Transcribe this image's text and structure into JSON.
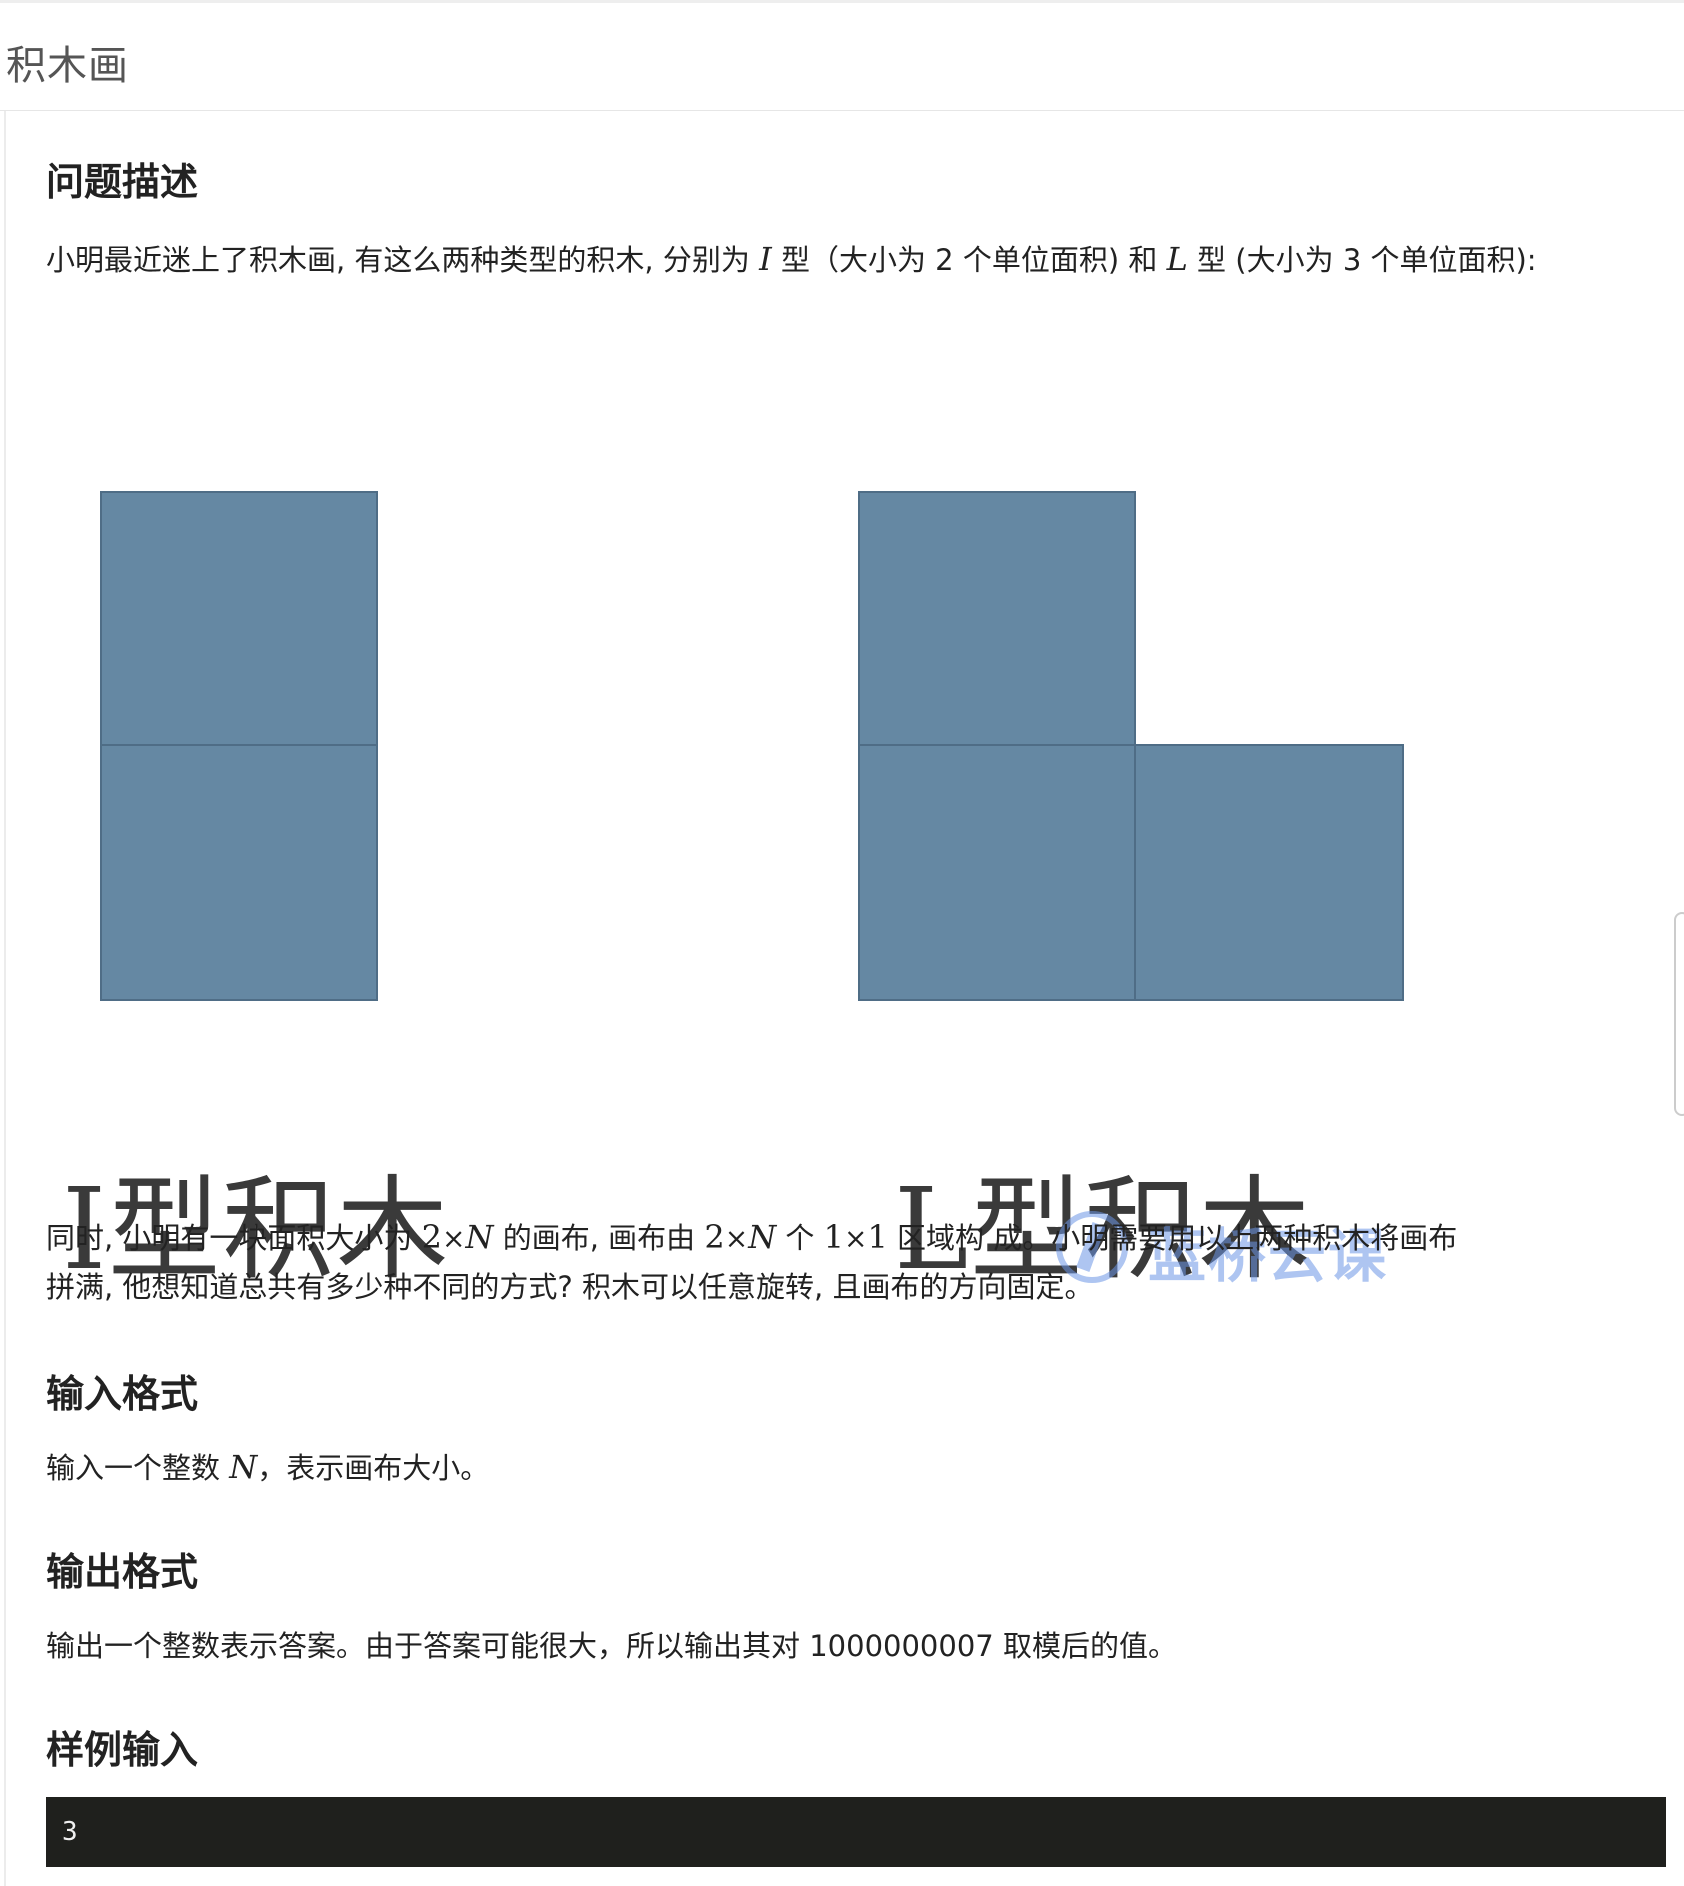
{
  "page": {
    "title": "积木画"
  },
  "sections": {
    "problem": {
      "heading": "问题描述",
      "intro": {
        "a": "小明最近迷上了积木画, 有这么两种类型的积木, 分别为 ",
        "i_sym": "I",
        "b": " 型（大小为 2 个单位面积) 和 ",
        "l_sym": "L",
        "c": " 型 (大小为 3 个单位面积):"
      },
      "body": {
        "a": "同时, 小明有一块面积大小为 ",
        "n1": "2",
        "x1": "×",
        "v1": "N",
        "b": " 的画布, 画布由 ",
        "n2": "2",
        "x2": "×",
        "v2": "N",
        "c": " 个 ",
        "n3": "1",
        "x3": "×",
        "n4": "1",
        "d": " 区域构 成。小明需要用以上两种积木将画布",
        "line2": "拼满, 他想知道总共有多少种不同的方式? 积木可以任意旋转, 且画布的方向固定。"
      }
    },
    "input": {
      "heading": "输入格式",
      "a": "输入一个整数 ",
      "v": "N",
      "b": "，表示画布大小。"
    },
    "output": {
      "heading": "输出格式",
      "text": "输出一个整数表示答案。由于答案可能很大，所以输出其对 1000000007 取模后的值。"
    },
    "sample_input": {
      "heading": "样例输入",
      "code": "3"
    }
  },
  "figure": {
    "caption_i": "I型积木",
    "caption_l": "L型积木",
    "block_color": "#6588a3",
    "watermark": {
      "text": "蓝桥云课",
      "color": "#6c96e6"
    }
  }
}
